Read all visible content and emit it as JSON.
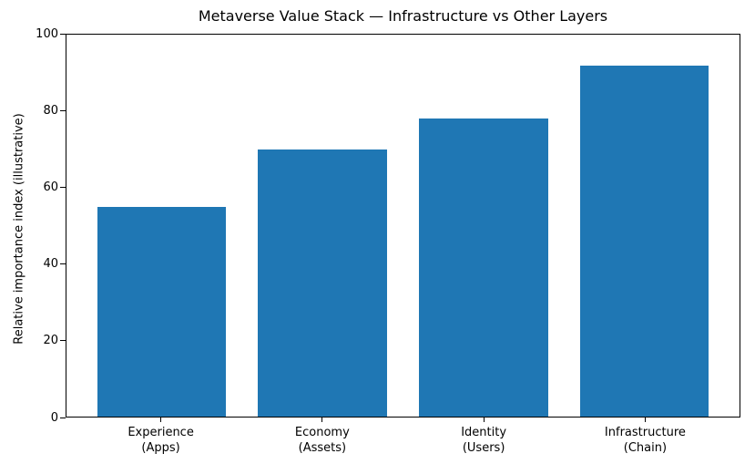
{
  "chart_data": {
    "type": "bar",
    "title": "Metaverse Value Stack — Infrastructure vs Other Layers",
    "ylabel": "Relative importance index (illustrative)",
    "xlabel": "",
    "categories": [
      [
        "Experience",
        "(Apps)"
      ],
      [
        "Economy",
        "(Assets)"
      ],
      [
        "Identity",
        "(Users)"
      ],
      [
        "Infrastructure",
        "(Chain)"
      ]
    ],
    "values": [
      55,
      70,
      78,
      92
    ],
    "ylim": [
      0,
      100
    ],
    "yticks": [
      0,
      20,
      40,
      60,
      80,
      100
    ],
    "bar_color": "#1f77b4",
    "background_color": "#ffffff",
    "axis_color": "#000000",
    "grid": false,
    "legend": null
  }
}
